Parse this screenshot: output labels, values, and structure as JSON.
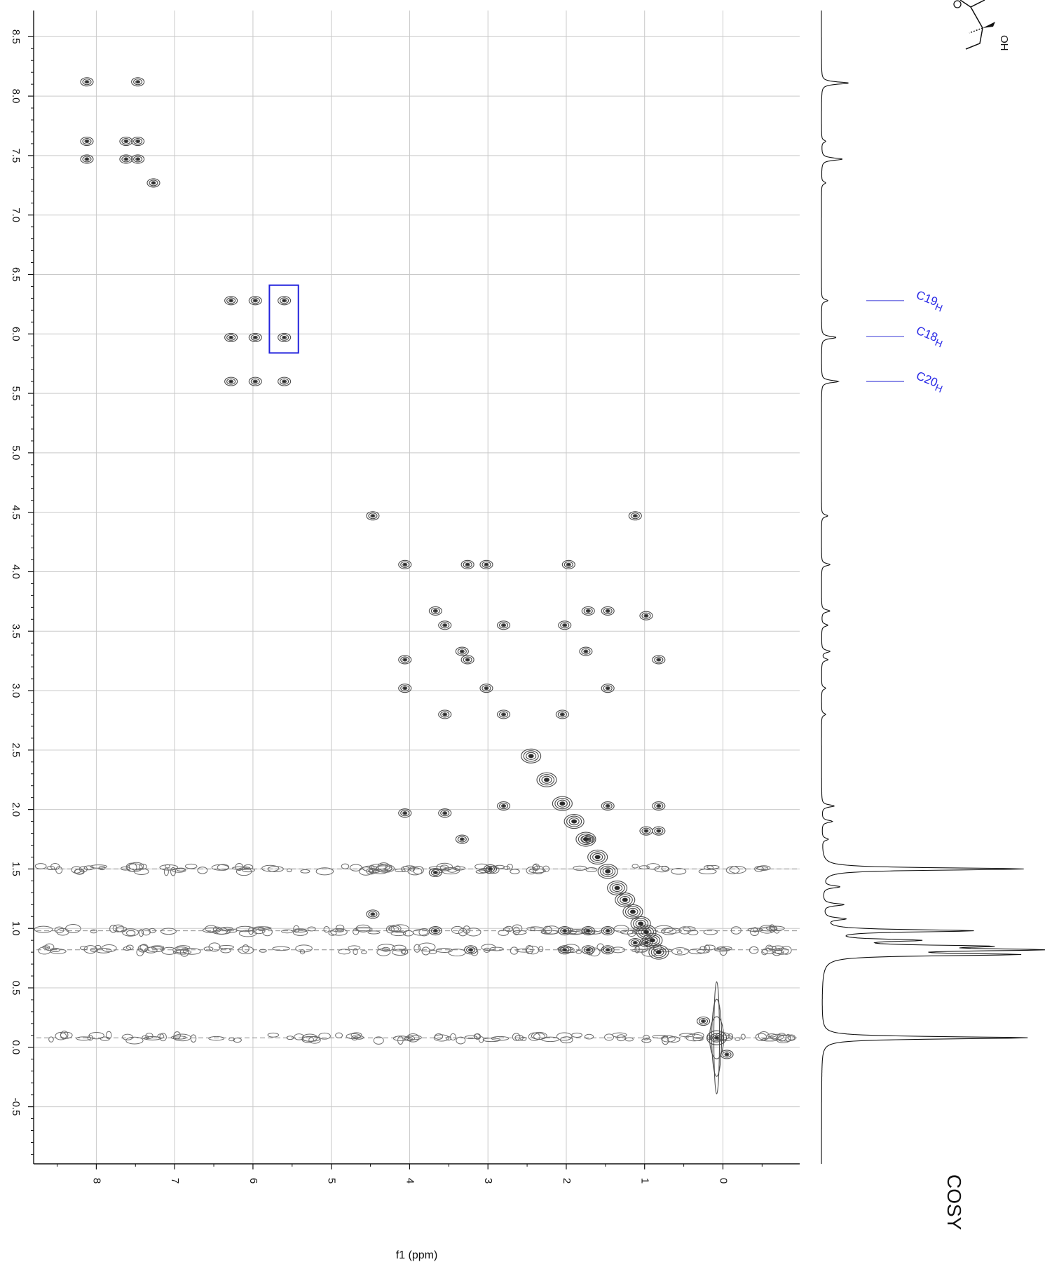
{
  "chart_data": {
    "type": "contour",
    "experiment_label": "COSY",
    "xlabel": "f1 (ppm)",
    "ylabel": "",
    "x_range": [
      8.8,
      -0.98
    ],
    "y_range": [
      8.72,
      -0.98
    ],
    "x_ticks": [
      "8",
      "7",
      "6",
      "5",
      "4",
      "3",
      "2",
      "1",
      "0"
    ],
    "y_ticks": [
      "8.5",
      "8.0",
      "7.5",
      "7.0",
      "6.5",
      "6.0",
      "5.5",
      "5.0",
      "4.5",
      "4.0",
      "3.5",
      "3.0",
      "2.5",
      "2.0",
      "1.5",
      "1.0",
      "0.5",
      "0.0",
      "-0.5"
    ],
    "grid": true,
    "highlight_box": {
      "x": [
        5.79,
        5.42
      ],
      "y": [
        6.41,
        5.84
      ],
      "color": "#2323dd"
    },
    "assignments": [
      {
        "label_main": "C19",
        "label_sub": "H",
        "ppm": 6.28
      },
      {
        "label_main": "C18",
        "label_sub": "H",
        "ppm": 5.98
      },
      {
        "label_main": "C20",
        "label_sub": "H",
        "ppm": 5.6
      }
    ],
    "cross_peaks": [
      {
        "x": 8.12,
        "y": 8.12
      },
      {
        "x": 7.47,
        "y": 8.12
      },
      {
        "x": 8.12,
        "y": 7.47
      },
      {
        "x": 7.62,
        "y": 7.62
      },
      {
        "x": 7.47,
        "y": 7.62
      },
      {
        "x": 7.62,
        "y": 7.47
      },
      {
        "x": 7.47,
        "y": 7.47
      },
      {
        "x": 8.12,
        "y": 7.62
      },
      {
        "x": 7.27,
        "y": 7.27
      },
      {
        "x": 6.28,
        "y": 6.28
      },
      {
        "x": 5.97,
        "y": 6.28
      },
      {
        "x": 5.6,
        "y": 6.28
      },
      {
        "x": 6.28,
        "y": 5.97
      },
      {
        "x": 5.97,
        "y": 5.97
      },
      {
        "x": 5.6,
        "y": 5.97
      },
      {
        "x": 6.28,
        "y": 5.6
      },
      {
        "x": 5.97,
        "y": 5.6
      },
      {
        "x": 5.6,
        "y": 5.6
      },
      {
        "x": 4.47,
        "y": 4.47
      },
      {
        "x": 1.12,
        "y": 4.47
      },
      {
        "x": 4.06,
        "y": 4.06
      },
      {
        "x": 3.26,
        "y": 4.06
      },
      {
        "x": 3.02,
        "y": 4.06
      },
      {
        "x": 1.97,
        "y": 4.06
      },
      {
        "x": 3.67,
        "y": 3.67
      },
      {
        "x": 3.55,
        "y": 3.55
      },
      {
        "x": 2.8,
        "y": 3.55
      },
      {
        "x": 2.02,
        "y": 3.55
      },
      {
        "x": 1.72,
        "y": 3.67
      },
      {
        "x": 1.47,
        "y": 3.67
      },
      {
        "x": 0.98,
        "y": 3.63
      },
      {
        "x": 3.33,
        "y": 3.33
      },
      {
        "x": 3.26,
        "y": 3.26
      },
      {
        "x": 4.06,
        "y": 3.26
      },
      {
        "x": 1.75,
        "y": 3.33
      },
      {
        "x": 0.82,
        "y": 3.26
      },
      {
        "x": 4.06,
        "y": 3.02
      },
      {
        "x": 3.02,
        "y": 3.02
      },
      {
        "x": 1.47,
        "y": 3.02
      },
      {
        "x": 2.8,
        "y": 2.8
      },
      {
        "x": 2.05,
        "y": 2.8
      },
      {
        "x": 3.55,
        "y": 2.8
      },
      {
        "x": 2.8,
        "y": 2.03
      },
      {
        "x": 1.47,
        "y": 2.03
      },
      {
        "x": 0.82,
        "y": 2.03
      },
      {
        "x": 4.06,
        "y": 1.97
      },
      {
        "x": 3.55,
        "y": 1.97
      },
      {
        "x": 3.33,
        "y": 1.75
      },
      {
        "x": 3.67,
        "y": 1.47
      },
      {
        "x": 2.97,
        "y": 1.5
      },
      {
        "x": 1.72,
        "y": 1.75
      },
      {
        "x": 0.98,
        "y": 1.82
      },
      {
        "x": 0.82,
        "y": 1.82
      },
      {
        "x": 4.47,
        "y": 1.12
      },
      {
        "x": 3.67,
        "y": 0.98
      },
      {
        "x": 3.22,
        "y": 0.82
      },
      {
        "x": 2.02,
        "y": 0.98
      },
      {
        "x": 1.72,
        "y": 0.98
      },
      {
        "x": 1.47,
        "y": 0.98
      },
      {
        "x": 2.02,
        "y": 0.82
      },
      {
        "x": 1.72,
        "y": 0.82
      },
      {
        "x": 1.47,
        "y": 0.82
      },
      {
        "x": 1.12,
        "y": 0.88
      },
      {
        "x": 0.98,
        "y": 0.88
      },
      {
        "x": 0.08,
        "y": 0.08
      },
      {
        "x": 0.25,
        "y": 0.22
      },
      {
        "x": -0.05,
        "y": -0.06
      }
    ],
    "diagonal_band": [
      {
        "x": 2.05,
        "y": 2.05
      },
      {
        "x": 1.9,
        "y": 1.9
      },
      {
        "x": 1.75,
        "y": 1.75
      },
      {
        "x": 1.6,
        "y": 1.6
      },
      {
        "x": 1.47,
        "y": 1.48
      },
      {
        "x": 1.35,
        "y": 1.34
      },
      {
        "x": 1.25,
        "y": 1.24
      },
      {
        "x": 1.15,
        "y": 1.14
      },
      {
        "x": 1.05,
        "y": 1.04
      },
      {
        "x": 0.98,
        "y": 0.97
      },
      {
        "x": 0.9,
        "y": 0.9
      },
      {
        "x": 0.82,
        "y": 0.8
      },
      {
        "x": 2.45,
        "y": 2.45
      },
      {
        "x": 2.25,
        "y": 2.25
      }
    ],
    "t1_noise_rows": [
      1.5,
      0.98,
      0.82,
      0.08
    ],
    "projection_1d": [
      {
        "ppm": 8.11,
        "h": 0.13
      },
      {
        "ppm": 7.62,
        "h": 0.02
      },
      {
        "ppm": 7.47,
        "h": 0.1
      },
      {
        "ppm": 7.27,
        "h": 0.02
      },
      {
        "ppm": 6.28,
        "h": 0.03
      },
      {
        "ppm": 5.97,
        "h": 0.07
      },
      {
        "ppm": 5.6,
        "h": 0.08
      },
      {
        "ppm": 4.47,
        "h": 0.03
      },
      {
        "ppm": 4.06,
        "h": 0.04
      },
      {
        "ppm": 3.67,
        "h": 0.04
      },
      {
        "ppm": 3.55,
        "h": 0.03
      },
      {
        "ppm": 3.33,
        "h": 0.04
      },
      {
        "ppm": 3.26,
        "h": 0.03
      },
      {
        "ppm": 3.02,
        "h": 0.02
      },
      {
        "ppm": 2.8,
        "h": 0.02
      },
      {
        "ppm": 2.03,
        "h": 0.06
      },
      {
        "ppm": 1.9,
        "h": 0.05
      },
      {
        "ppm": 1.75,
        "h": 0.03
      },
      {
        "ppm": 1.5,
        "h": 0.96
      },
      {
        "ppm": 1.35,
        "h": 0.08
      },
      {
        "ppm": 1.2,
        "h": 0.1
      },
      {
        "ppm": 1.08,
        "h": 0.1
      },
      {
        "ppm": 0.98,
        "h": 0.7
      },
      {
        "ppm": 0.9,
        "h": 0.4
      },
      {
        "ppm": 0.85,
        "h": 0.65
      },
      {
        "ppm": 0.82,
        "h": 0.9
      },
      {
        "ppm": 0.78,
        "h": 0.85
      },
      {
        "ppm": 0.08,
        "h": 0.98
      }
    ]
  },
  "structure_fragment": {
    "hydroxyl_label": "OH"
  }
}
